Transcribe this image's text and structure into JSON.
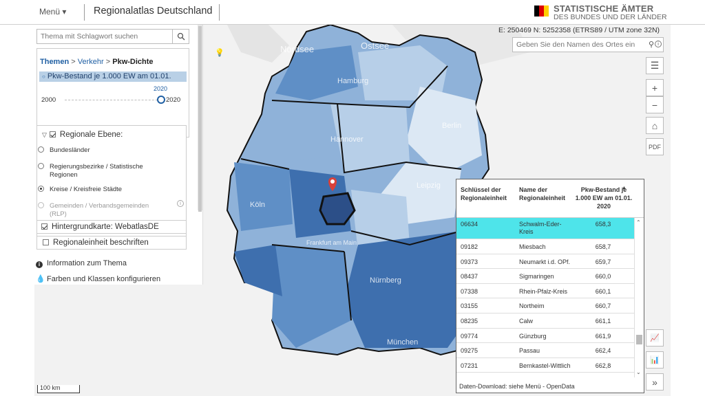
{
  "header": {
    "menu_label": "Menü ▾",
    "app_title": "Regionalatlas Deutschland",
    "logo_line1": "STATISTISCHE ÄMTER",
    "logo_line2": "DES BUNDES UND DER LÄNDER",
    "flag_colors": [
      "#000000",
      "#dd0000",
      "#ffce00"
    ]
  },
  "panel": {
    "search_placeholder": "Thema mit Schlagwort suchen",
    "search_icon": "search-icon",
    "breadcrumb": [
      "Themen",
      "Verkehr",
      "Pkw-Dichte"
    ],
    "breadcrumb_sep": ">",
    "indicator": "Pkw-Bestand je 1.000 EW am 01.01.",
    "year_selected": "2020",
    "year_min": "2000",
    "year_max": "2020",
    "level_heading": "Regionale Ebene:",
    "levels": [
      "Bundesländer",
      "Regierungsbezirke / Statistische Regionen",
      "Kreise / Kreisfreie Städte",
      "Gemeinden / Verbandsgemeinden (RLP)"
    ],
    "selected_level_index": 2,
    "background_map": "Hintergrundkarte: WebatlasDE",
    "label_regions": "Regionaleinheit beschriften",
    "info_link": "Information zum Thema",
    "colors_link": "Farben und Klassen konfigurieren"
  },
  "map": {
    "coords": "E: 250469 N: 5252358  (ETRS89 / UTM zone 32N)",
    "place_placeholder": "Geben Sie den Namen des Ortes ein",
    "labels": [
      "Nordsee",
      "Ostsee",
      "Hamburg",
      "Hannover",
      "Berlin",
      "Leipzig",
      "Köln",
      "Frankfurt am Main",
      "Nürnberg",
      "München"
    ],
    "scale": "100 km",
    "colors": [
      "#dce8f4",
      "#b7cfe8",
      "#8fb2d9",
      "#5f8fc6",
      "#3e6fae"
    ],
    "marker_color": "#d9413b"
  },
  "table": {
    "headers": [
      "Schlüssel der Regionaleinheit",
      "Name der Regionaleinheit",
      "Pkw-Bestand je 1.000 EW am 01.01. 2020"
    ],
    "sort_indicator": "▲",
    "rows": [
      {
        "key": "06634",
        "name": "Schwalm-Eder-Kreis",
        "value": "658,3"
      },
      {
        "key": "09182",
        "name": "Miesbach",
        "value": "658,7"
      },
      {
        "key": "09373",
        "name": "Neumarkt i.d. OPf.",
        "value": "659,7"
      },
      {
        "key": "08437",
        "name": "Sigmaringen",
        "value": "660,0"
      },
      {
        "key": "07338",
        "name": "Rhein-Pfalz-Kreis",
        "value": "660,1"
      },
      {
        "key": "03155",
        "name": "Northeim",
        "value": "660,7"
      },
      {
        "key": "08235",
        "name": "Calw",
        "value": "661,1"
      },
      {
        "key": "09774",
        "name": "Günzburg",
        "value": "661,9"
      },
      {
        "key": "09275",
        "name": "Passau",
        "value": "662,4"
      },
      {
        "key": "07231",
        "name": "Bernkastel-Wittlich",
        "value": "662,8"
      }
    ],
    "highlight_color": "#4ee4ea",
    "footer": "Daten-Download: siehe Menü - OpenData"
  }
}
